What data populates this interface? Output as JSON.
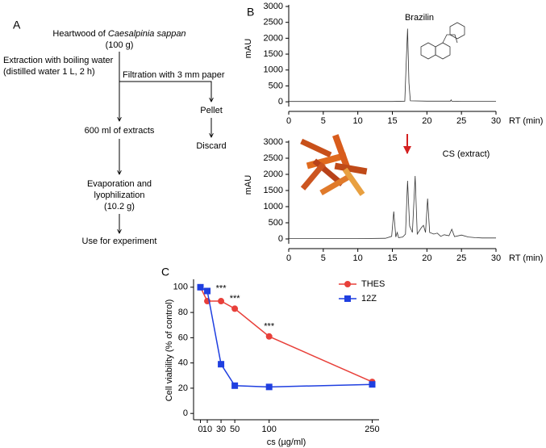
{
  "panels": [
    "A",
    "B",
    "C"
  ],
  "flowchart": {
    "start": {
      "text": "Heartwood of",
      "italic": "Caesalpinia sappan",
      "line2": "(100 g)"
    },
    "extraction": [
      "Extraction with boiling water",
      "(distilled water 1 L, 2 h)"
    ],
    "filtration": "Filtration with 3 mm paper",
    "pellet": "Pellet",
    "discard": "Discard",
    "extracts": "600 ml of extracts",
    "evaporation": [
      "Evaporation and",
      "lyophilization",
      "(10.2 g)"
    ],
    "use": "Use for experiment"
  },
  "chart_data": [
    {
      "type": "line",
      "annotation": "Brazilin",
      "xlabel": "RT (min)",
      "ylabel": "mAU",
      "color": "#333333",
      "x": [
        0,
        5,
        10,
        15,
        16.8,
        17.0,
        17.2,
        17.4,
        17.6,
        20,
        23.4,
        23.5,
        23.6,
        25,
        30
      ],
      "values": [
        10,
        10,
        10,
        10,
        20,
        1200,
        2300,
        600,
        30,
        20,
        20,
        60,
        20,
        15,
        15
      ],
      "xlim": [
        0,
        30
      ],
      "xticks": [
        0,
        5,
        10,
        15,
        20,
        25,
        30
      ],
      "ylim": [
        -150,
        3000
      ],
      "yticks": [
        0,
        500,
        1000,
        1500,
        2000,
        2500,
        3000
      ]
    },
    {
      "type": "line",
      "annotation": "CS (extract)",
      "xlabel": "RT (min)",
      "ylabel": "mAU",
      "color": "#333333",
      "x": [
        0,
        5,
        10,
        14,
        14.9,
        15.2,
        15.5,
        15.7,
        15.9,
        16.5,
        16.9,
        17.2,
        17.5,
        17.7,
        17.9,
        18.3,
        18.6,
        19.2,
        19.5,
        19.8,
        20.1,
        20.4,
        21,
        21.5,
        22,
        22.5,
        23.2,
        23.6,
        24,
        25,
        26,
        27,
        28,
        30
      ],
      "values": [
        10,
        10,
        10,
        20,
        80,
        850,
        60,
        200,
        40,
        60,
        150,
        1800,
        400,
        300,
        200,
        1950,
        150,
        350,
        420,
        200,
        1250,
        200,
        150,
        180,
        80,
        130,
        100,
        300,
        70,
        120,
        60,
        40,
        30,
        30
      ],
      "xlim": [
        0,
        30
      ],
      "xticks": [
        0,
        5,
        10,
        15,
        20,
        25,
        30
      ],
      "ylim": [
        -150,
        3000
      ],
      "yticks": [
        0,
        500,
        1000,
        1500,
        2000,
        2500,
        3000
      ]
    },
    {
      "type": "line",
      "xlabel": "cs (µg/ml)",
      "ylabel": "Cell viability (% of control)",
      "legend": "upper right",
      "x": [
        0,
        10,
        30,
        50,
        100,
        250
      ],
      "series": [
        {
          "name": "THES",
          "color": "#e8403a",
          "marker": "circle",
          "values": [
            100,
            89,
            89,
            83,
            61,
            25
          ]
        },
        {
          "name": "12Z",
          "color": "#1f3fe0",
          "marker": "square",
          "values": [
            100,
            97,
            39,
            22,
            21,
            23
          ]
        }
      ],
      "annotations": [
        {
          "text": "***",
          "x": 30,
          "y": 100
        },
        {
          "text": "***",
          "x": 50,
          "y": 92
        },
        {
          "text": "***",
          "x": 100,
          "y": 70
        }
      ],
      "xlim": [
        -10,
        260
      ],
      "xticks": [
        0,
        10,
        30,
        50,
        100,
        250
      ],
      "ylim": [
        -5,
        105
      ],
      "yticks": [
        0,
        20,
        40,
        60,
        80,
        100
      ]
    }
  ]
}
